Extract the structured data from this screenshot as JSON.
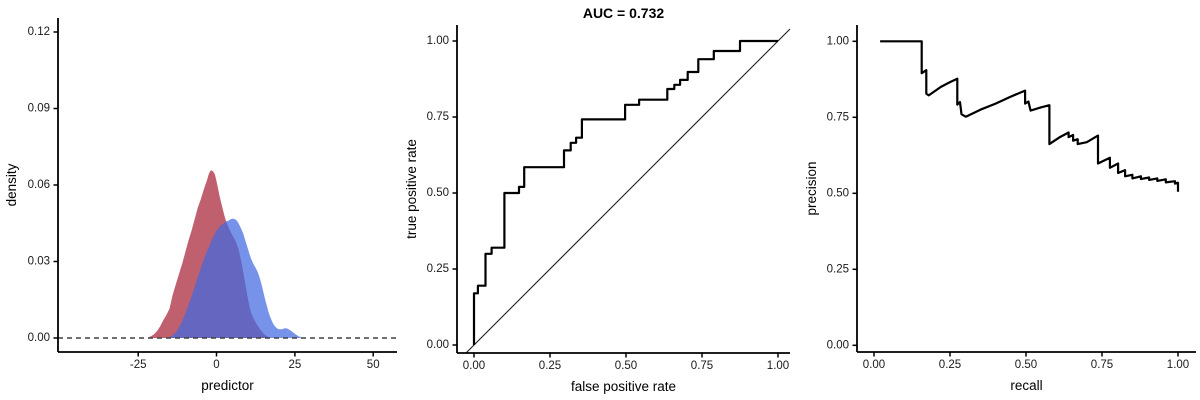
{
  "page": {
    "background": "#FFFFFF"
  },
  "chart_data": [
    {
      "id": "density",
      "type": "area",
      "title": "",
      "xlabel": "predictor",
      "ylabel": "density",
      "xlim": [
        -50.6,
        57.6
      ],
      "ylim": [
        -0.0055,
        0.1255
      ],
      "xtick_values": [
        -25,
        0,
        25,
        50
      ],
      "xtick_labels": [
        "-25",
        "0",
        "25",
        "50"
      ],
      "ytick_values": [
        0,
        0.03,
        0.06,
        0.09,
        0.12
      ],
      "ytick_labels": [
        "0.00",
        "0.03",
        "0.06",
        "0.09",
        "0.12"
      ],
      "grid": false,
      "legend": "none",
      "hline": {
        "y": 0,
        "style": "dashed",
        "color": "#404040"
      },
      "series": [
        {
          "name": "positive-class-density-area",
          "kind": "area",
          "color": "#C05F6D",
          "opacity": 1.0,
          "points": [
            [
              -22,
              0
            ],
            [
              -21,
              0.0006
            ],
            [
              -20,
              0.0014
            ],
            [
              -19,
              0.0027
            ],
            [
              -18,
              0.0045
            ],
            [
              -17,
              0.007
            ],
            [
              -16,
              0.009
            ],
            [
              -15,
              0.0115
            ],
            [
              -14,
              0.017
            ],
            [
              -13,
              0.021
            ],
            [
              -12,
              0.025
            ],
            [
              -11,
              0.029
            ],
            [
              -10,
              0.0335
            ],
            [
              -9,
              0.038
            ],
            [
              -8,
              0.042
            ],
            [
              -7,
              0.0465
            ],
            [
              -6,
              0.051
            ],
            [
              -5,
              0.0545
            ],
            [
              -4,
              0.0585
            ],
            [
              -3,
              0.062
            ],
            [
              -2.5,
              0.0642
            ],
            [
              -2,
              0.0655
            ],
            [
              -1.7,
              0.0658
            ],
            [
              -1,
              0.0652
            ],
            [
              -0.5,
              0.064
            ],
            [
              0,
              0.0615
            ],
            [
              0.5,
              0.0585
            ],
            [
              1,
              0.0555
            ],
            [
              1.5,
              0.053
            ],
            [
              2,
              0.0505
            ],
            [
              2.5,
              0.048
            ],
            [
              3,
              0.046
            ],
            [
              4,
              0.0428
            ],
            [
              5,
              0.0405
            ],
            [
              6,
              0.0382
            ],
            [
              7,
              0.035
            ],
            [
              8,
              0.0295
            ],
            [
              9,
              0.0225
            ],
            [
              10,
              0.0155
            ],
            [
              10.5,
              0.0125
            ],
            [
              11,
              0.01
            ],
            [
              11.5,
              0.0085
            ],
            [
              12,
              0.0072
            ],
            [
              13,
              0.005
            ],
            [
              14,
              0.0032
            ],
            [
              15,
              0.0017
            ],
            [
              16,
              0.0007
            ],
            [
              17,
              0.0002
            ],
            [
              17.5,
              0
            ]
          ]
        },
        {
          "name": "negative-class-density-area",
          "kind": "area",
          "color": "#4169E1",
          "opacity": 0.72,
          "points": [
            [
              -15.5,
              0
            ],
            [
              -15,
              0.0003
            ],
            [
              -14,
              0.001
            ],
            [
              -13,
              0.0022
            ],
            [
              -12,
              0.004
            ],
            [
              -11,
              0.0065
            ],
            [
              -10,
              0.0095
            ],
            [
              -9,
              0.0128
            ],
            [
              -8,
              0.0163
            ],
            [
              -7,
              0.02
            ],
            [
              -6,
              0.0238
            ],
            [
              -5,
              0.0275
            ],
            [
              -4,
              0.031
            ],
            [
              -3,
              0.0342
            ],
            [
              -2,
              0.037
            ],
            [
              -1,
              0.0398
            ],
            [
              0,
              0.042
            ],
            [
              1,
              0.0437
            ],
            [
              2,
              0.0448
            ],
            [
              3,
              0.0456
            ],
            [
              4,
              0.0462
            ],
            [
              4.5,
              0.0466
            ],
            [
              5,
              0.0468
            ],
            [
              5.5,
              0.0468
            ],
            [
              6,
              0.0465
            ],
            [
              6.5,
              0.046
            ],
            [
              7,
              0.045
            ],
            [
              7.5,
              0.0438
            ],
            [
              8,
              0.0425
            ],
            [
              8.5,
              0.041
            ],
            [
              9,
              0.039
            ],
            [
              9.5,
              0.037
            ],
            [
              10,
              0.035
            ],
            [
              10.5,
              0.033
            ],
            [
              11,
              0.0312
            ],
            [
              11.5,
              0.0297
            ],
            [
              12,
              0.0285
            ],
            [
              12.5,
              0.0275
            ],
            [
              13,
              0.0262
            ],
            [
              13.5,
              0.0247
            ],
            [
              14,
              0.0227
            ],
            [
              14.5,
              0.0203
            ],
            [
              15,
              0.0178
            ],
            [
              15.5,
              0.0152
            ],
            [
              16,
              0.0128
            ],
            [
              16.5,
              0.0106
            ],
            [
              17,
              0.0087
            ],
            [
              17.5,
              0.0071
            ],
            [
              18,
              0.0058
            ],
            [
              18.5,
              0.0048
            ],
            [
              19,
              0.0041
            ],
            [
              19.5,
              0.0036
            ],
            [
              20,
              0.0034
            ],
            [
              20.5,
              0.0034
            ],
            [
              21,
              0.0035
            ],
            [
              21.5,
              0.0037
            ],
            [
              22,
              0.0038
            ],
            [
              22.5,
              0.0037
            ],
            [
              23,
              0.0034
            ],
            [
              23.5,
              0.003
            ],
            [
              24,
              0.0026
            ],
            [
              24.5,
              0.0021
            ],
            [
              25,
              0.0016
            ],
            [
              25.5,
              0.0012
            ],
            [
              26,
              0.0008
            ],
            [
              26.5,
              0.0005
            ],
            [
              27,
              0.0003
            ],
            [
              27.5,
              0.0002
            ],
            [
              28,
              0.0001
            ],
            [
              28.5,
              0
            ]
          ]
        }
      ]
    },
    {
      "id": "roc",
      "type": "line",
      "title": "AUC = 0.732",
      "auc": 0.732,
      "xlabel": "false positive rate",
      "ylabel": "true positive rate",
      "xlim": [
        -0.0559,
        1.0395
      ],
      "ylim": [
        -0.0263,
        1.0526
      ],
      "xtick_values": [
        0,
        0.25,
        0.5,
        0.75,
        1
      ],
      "xtick_labels": [
        "0.00",
        "0.25",
        "0.50",
        "0.75",
        "1.00"
      ],
      "ytick_values": [
        0,
        0.25,
        0.5,
        0.75,
        1
      ],
      "ytick_labels": [
        "0.00",
        "0.25",
        "0.50",
        "0.75",
        "1.00"
      ],
      "grid": false,
      "legend": "none",
      "diagonal": {
        "name": "chance-diagonal",
        "color": "#1a1a1a",
        "width": 1.1
      },
      "series": [
        {
          "name": "roc-curve",
          "kind": "line",
          "color": "#000000",
          "width": 2.2,
          "points": [
            [
              0,
              0
            ],
            [
              0,
              0.17
            ],
            [
              0.013,
              0.17
            ],
            [
              0.013,
              0.195
            ],
            [
              0.038,
              0.195
            ],
            [
              0.038,
              0.3
            ],
            [
              0.058,
              0.3
            ],
            [
              0.058,
              0.32
            ],
            [
              0.1,
              0.32
            ],
            [
              0.1,
              0.5
            ],
            [
              0.148,
              0.5
            ],
            [
              0.148,
              0.52
            ],
            [
              0.165,
              0.52
            ],
            [
              0.165,
              0.585
            ],
            [
              0.296,
              0.585
            ],
            [
              0.296,
              0.64
            ],
            [
              0.318,
              0.64
            ],
            [
              0.318,
              0.665
            ],
            [
              0.336,
              0.665
            ],
            [
              0.336,
              0.682
            ],
            [
              0.355,
              0.682
            ],
            [
              0.355,
              0.742
            ],
            [
              0.497,
              0.742
            ],
            [
              0.497,
              0.79
            ],
            [
              0.543,
              0.79
            ],
            [
              0.543,
              0.807
            ],
            [
              0.636,
              0.807
            ],
            [
              0.636,
              0.842
            ],
            [
              0.659,
              0.842
            ],
            [
              0.659,
              0.856
            ],
            [
              0.678,
              0.856
            ],
            [
              0.678,
              0.872
            ],
            [
              0.703,
              0.872
            ],
            [
              0.703,
              0.898
            ],
            [
              0.738,
              0.898
            ],
            [
              0.738,
              0.94
            ],
            [
              0.789,
              0.94
            ],
            [
              0.789,
              0.967
            ],
            [
              0.875,
              0.967
            ],
            [
              0.875,
              1
            ],
            [
              1,
              1
            ]
          ]
        }
      ]
    },
    {
      "id": "pr",
      "type": "line",
      "title": "",
      "xlabel": "recall",
      "ylabel": "precision",
      "xlim": [
        -0.0559,
        1.0592
      ],
      "ylim": [
        -0.022,
        1.0537
      ],
      "xtick_values": [
        0,
        0.25,
        0.5,
        0.75,
        1
      ],
      "xtick_labels": [
        "0.00",
        "0.25",
        "0.50",
        "0.75",
        "1.00"
      ],
      "ytick_values": [
        0,
        0.25,
        0.5,
        0.75,
        1
      ],
      "ytick_labels": [
        "0.00",
        "0.25",
        "0.50",
        "0.75",
        "1.00"
      ],
      "grid": false,
      "legend": "none",
      "series": [
        {
          "name": "precision-recall-curve",
          "kind": "line",
          "color": "#000000",
          "width": 2.2,
          "points": [
            [
              0.02,
              1
            ],
            [
              0.157,
              1
            ],
            [
              0.157,
              0.895
            ],
            [
              0.172,
              0.905
            ],
            [
              0.172,
              0.828
            ],
            [
              0.18,
              0.822
            ],
            [
              0.22,
              0.85
            ],
            [
              0.25,
              0.866
            ],
            [
              0.274,
              0.877
            ],
            [
              0.274,
              0.792
            ],
            [
              0.283,
              0.8
            ],
            [
              0.288,
              0.76
            ],
            [
              0.302,
              0.752
            ],
            [
              0.35,
              0.775
            ],
            [
              0.4,
              0.795
            ],
            [
              0.45,
              0.818
            ],
            [
              0.497,
              0.838
            ],
            [
              0.497,
              0.795
            ],
            [
              0.508,
              0.802
            ],
            [
              0.515,
              0.772
            ],
            [
              0.55,
              0.783
            ],
            [
              0.577,
              0.79
            ],
            [
              0.577,
              0.662
            ],
            [
              0.61,
              0.684
            ],
            [
              0.64,
              0.7
            ],
            [
              0.64,
              0.685
            ],
            [
              0.655,
              0.692
            ],
            [
              0.655,
              0.673
            ],
            [
              0.67,
              0.678
            ],
            [
              0.67,
              0.662
            ],
            [
              0.7,
              0.668
            ],
            [
              0.72,
              0.68
            ],
            [
              0.737,
              0.69
            ],
            [
              0.737,
              0.598
            ],
            [
              0.776,
              0.617
            ],
            [
              0.776,
              0.584
            ],
            [
              0.803,
              0.598
            ],
            [
              0.803,
              0.567
            ],
            [
              0.826,
              0.576
            ],
            [
              0.826,
              0.556
            ],
            [
              0.85,
              0.561
            ],
            [
              0.85,
              0.549
            ],
            [
              0.878,
              0.556
            ],
            [
              0.878,
              0.547
            ],
            [
              0.905,
              0.552
            ],
            [
              0.905,
              0.544
            ],
            [
              0.932,
              0.549
            ],
            [
              0.932,
              0.541
            ],
            [
              0.96,
              0.546
            ],
            [
              0.96,
              0.536
            ],
            [
              0.99,
              0.54
            ],
            [
              0.99,
              0.532
            ],
            [
              1,
              0.535
            ],
            [
              1,
              0.505
            ]
          ]
        }
      ]
    }
  ]
}
